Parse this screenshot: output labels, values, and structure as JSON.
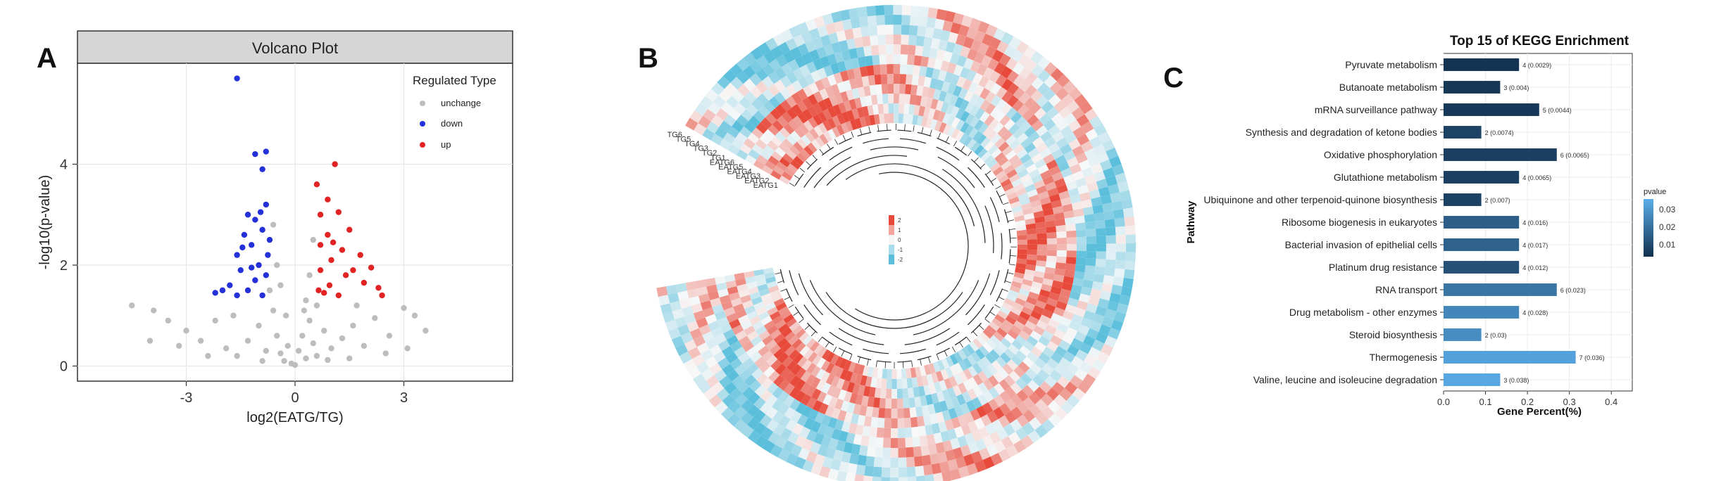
{
  "panels": {
    "A": {
      "letter": "A"
    },
    "B": {
      "letter": "B"
    },
    "C": {
      "letter": "C"
    }
  },
  "chart_data": [
    {
      "panel": "A",
      "type": "scatter",
      "title": "Volcano Plot",
      "xlabel": "log2(EATG/TG)",
      "ylabel": "-log10(p-value)",
      "xlim": [
        -6,
        6
      ],
      "ylim": [
        -0.3,
        6
      ],
      "xticks": [
        -3,
        0,
        3
      ],
      "yticks": [
        0,
        2,
        4
      ],
      "grid": true,
      "legend": {
        "title": "Regulated Type",
        "position": "top-right",
        "entries": [
          {
            "label": "unchange",
            "color": "#bdbdbd"
          },
          {
            "label": "down",
            "color": "#2430d8"
          },
          {
            "label": "up",
            "color": "#e12323"
          }
        ]
      },
      "series": [
        {
          "name": "down",
          "color": "#2430d8",
          "points": [
            [
              -1.6,
              5.7
            ],
            [
              -1.1,
              4.2
            ],
            [
              -0.8,
              4.25
            ],
            [
              -0.9,
              3.9
            ],
            [
              -1.3,
              3.0
            ],
            [
              -0.8,
              3.2
            ],
            [
              -1.1,
              2.9
            ],
            [
              -1.4,
              2.6
            ],
            [
              -0.9,
              2.7
            ],
            [
              -1.6,
              2.2
            ],
            [
              -1.2,
              2.4
            ],
            [
              -0.7,
              2.5
            ],
            [
              -2.0,
              1.5
            ],
            [
              -1.8,
              1.6
            ],
            [
              -1.5,
              1.9
            ],
            [
              -1.0,
              2.0
            ],
            [
              -0.8,
              1.8
            ],
            [
              -1.3,
              1.5
            ],
            [
              -0.9,
              1.4
            ],
            [
              -1.6,
              1.4
            ],
            [
              -2.2,
              1.45
            ],
            [
              -1.1,
              1.7
            ],
            [
              -0.75,
              2.2
            ],
            [
              -1.45,
              2.35
            ],
            [
              -0.95,
              3.05
            ],
            [
              -1.2,
              1.95
            ]
          ]
        },
        {
          "name": "up",
          "color": "#e12323",
          "points": [
            [
              1.1,
              4.0
            ],
            [
              0.6,
              3.6
            ],
            [
              0.9,
              3.3
            ],
            [
              0.7,
              3.0
            ],
            [
              1.2,
              3.05
            ],
            [
              0.9,
              2.6
            ],
            [
              1.5,
              2.7
            ],
            [
              0.7,
              2.4
            ],
            [
              1.3,
              2.3
            ],
            [
              1.8,
              2.2
            ],
            [
              1.0,
              2.1
            ],
            [
              2.1,
              1.95
            ],
            [
              0.7,
              1.9
            ],
            [
              1.4,
              1.8
            ],
            [
              0.95,
              1.6
            ],
            [
              1.9,
              1.65
            ],
            [
              2.3,
              1.55
            ],
            [
              0.8,
              1.45
            ],
            [
              1.2,
              1.4
            ],
            [
              2.4,
              1.4
            ],
            [
              0.65,
              1.5
            ],
            [
              1.6,
              1.9
            ],
            [
              1.05,
              2.45
            ]
          ]
        },
        {
          "name": "unchange",
          "color": "#bdbdbd",
          "points": [
            [
              -4.5,
              1.2
            ],
            [
              -3.9,
              1.1
            ],
            [
              -3.5,
              0.9
            ],
            [
              -3.0,
              0.7
            ],
            [
              -2.6,
              0.5
            ],
            [
              -2.2,
              0.9
            ],
            [
              -1.9,
              0.35
            ],
            [
              -1.6,
              0.2
            ],
            [
              -1.3,
              0.5
            ],
            [
              -1.0,
              0.8
            ],
            [
              -0.8,
              0.3
            ],
            [
              -0.6,
              1.1
            ],
            [
              -0.5,
              0.6
            ],
            [
              -0.4,
              0.25
            ],
            [
              -0.3,
              0.1
            ],
            [
              -0.2,
              0.4
            ],
            [
              -0.1,
              0.05
            ],
            [
              0.0,
              0.02
            ],
            [
              0.1,
              0.3
            ],
            [
              0.2,
              0.6
            ],
            [
              0.3,
              0.15
            ],
            [
              0.4,
              0.9
            ],
            [
              0.5,
              0.45
            ],
            [
              0.6,
              0.2
            ],
            [
              0.8,
              0.7
            ],
            [
              1.0,
              0.35
            ],
            [
              1.3,
              0.55
            ],
            [
              1.6,
              0.8
            ],
            [
              1.9,
              0.4
            ],
            [
              2.2,
              0.95
            ],
            [
              2.6,
              0.6
            ],
            [
              3.0,
              1.15
            ],
            [
              3.3,
              1.0
            ],
            [
              3.6,
              0.7
            ],
            [
              -0.5,
              2.0
            ],
            [
              -0.6,
              2.8
            ],
            [
              -0.4,
              1.6
            ],
            [
              0.4,
              1.8
            ],
            [
              0.5,
              2.5
            ],
            [
              0.3,
              1.3
            ],
            [
              -0.7,
              1.5
            ],
            [
              0.6,
              1.2
            ],
            [
              -2.4,
              0.2
            ],
            [
              2.5,
              0.25
            ],
            [
              -3.2,
              0.4
            ],
            [
              3.1,
              0.35
            ],
            [
              -0.25,
              1.0
            ],
            [
              0.25,
              1.1
            ],
            [
              -0.9,
              0.1
            ],
            [
              0.9,
              0.12
            ],
            [
              -4.0,
              0.5
            ],
            [
              1.5,
              0.15
            ],
            [
              -1.7,
              1.0
            ],
            [
              1.7,
              1.2
            ]
          ]
        }
      ]
    },
    {
      "panel": "B",
      "type": "heatmap",
      "description_rows": [
        "TG6",
        "TG5",
        "TG4",
        "TG3",
        "TG2",
        "TG1",
        "EATG6",
        "EATG5",
        "EATG4",
        "EATG3",
        "EATG2",
        "EATG1"
      ],
      "rows": [
        "TG6",
        "TG5",
        "TG4",
        "TG3",
        "TG2",
        "TG1",
        "EATG6",
        "EATG5",
        "EATG4",
        "EATG3",
        "EATG2",
        "EATG1"
      ],
      "colorbar": {
        "ticks": [
          "2",
          "1",
          "0",
          "-1",
          "-2"
        ],
        "high": "#e7493a",
        "mid": "#ffffff",
        "low": "#5bbfdc"
      },
      "note": "Circular clustered heatmap with dendrogram; gene labels not legible."
    },
    {
      "panel": "C",
      "type": "bar",
      "orientation": "horizontal",
      "title": "Top 15 of KEGG Enrichment",
      "xlabel": "Gene Percent(%)",
      "ylabel": "Pathway",
      "xlim": [
        0,
        0.45
      ],
      "xticks": [
        "0.0",
        "0.1",
        "0.2",
        "0.3",
        "0.4"
      ],
      "colorbar": {
        "title": "pvalue",
        "ticks": [
          "0.03",
          "0.02",
          "0.01"
        ],
        "low_color": "#12304e",
        "high_color": "#5aaeea",
        "range": [
          0.002,
          0.04
        ]
      },
      "categories": [
        "Pyruvate metabolism",
        "Butanoate metabolism",
        "mRNA surveillance pathway",
        "Synthesis and degradation of ketone bodies",
        "Oxidative phosphorylation",
        "Glutathione metabolism",
        "Ubiquinone and other terpenoid-quinone biosynthesis",
        "Ribosome biogenesis in eukaryotes",
        "Bacterial invasion of epithelial cells",
        "Platinum drug resistance",
        "RNA transport",
        "Drug metabolism - other enzymes",
        "Steroid biosynthesis",
        "Thermogenesis",
        "Valine, leucine and isoleucine degradation"
      ],
      "values": [
        0.18,
        0.135,
        0.228,
        0.09,
        0.27,
        0.18,
        0.09,
        0.18,
        0.18,
        0.18,
        0.27,
        0.18,
        0.09,
        0.315,
        0.135
      ],
      "pvalues": [
        0.0029,
        0.004,
        0.0044,
        0.0074,
        0.0065,
        0.0065,
        0.007,
        0.016,
        0.017,
        0.012,
        0.023,
        0.028,
        0.03,
        0.036,
        0.038
      ],
      "labels": [
        "4 (0.0029)",
        "3 (0.004)",
        "5 (0.0044)",
        "2 (0.0074)",
        "6 (0.0065)",
        "4 (0.0065)",
        "2 (0.007)",
        "4 (0.016)",
        "4 (0.017)",
        "4 (0.012)",
        "6 (0.023)",
        "4 (0.028)",
        "2 (0.03)",
        "7 (0.036)",
        "3 (0.038)"
      ]
    }
  ]
}
